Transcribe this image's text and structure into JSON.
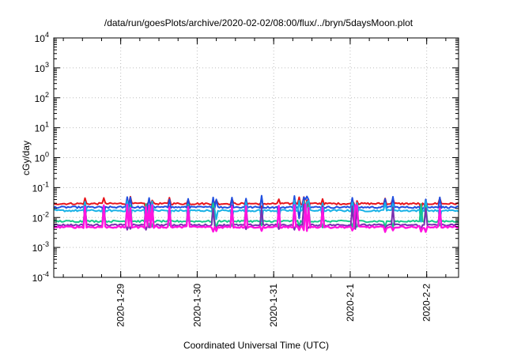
{
  "chart_data": {
    "type": "line",
    "title": "/data/run/goesPlots/archive/2020-02-02/08:00/flux/../bryn/5daysMoon.plot",
    "xlabel": "Coordinated Universal Time (UTC)",
    "ylabel": "cGy/day",
    "yscale": "log",
    "ylim": [
      0.0001,
      10000
    ],
    "xlim": [
      "2020-01-28 03:00",
      "2020-02-02 10:00"
    ],
    "grid": true,
    "legend": "none",
    "y_ticks": [
      {
        "base": "10",
        "exp": "-4"
      },
      {
        "base": "10",
        "exp": "-3"
      },
      {
        "base": "10",
        "exp": "-2"
      },
      {
        "base": "10",
        "exp": "-1"
      },
      {
        "base": "10",
        "exp": "0"
      },
      {
        "base": "10",
        "exp": "1"
      },
      {
        "base": "10",
        "exp": "2"
      },
      {
        "base": "10",
        "exp": "3"
      },
      {
        "base": "10",
        "exp": "4"
      }
    ],
    "x_ticks": [
      "2020-1-29",
      "2020-1-30",
      "2020-1-31",
      "2020-2-1",
      "2020-2-2"
    ],
    "x_tick_times": [
      "2020-01-29 00:00",
      "2020-01-30 00:00",
      "2020-01-31 00:00",
      "2020-02-01 00:00",
      "2020-02-02 00:00"
    ],
    "series": [
      {
        "color": "#e8141b",
        "baseline": 0.029,
        "spike_peak": 0.05,
        "dip_min": 0.018
      },
      {
        "color": "#1f4fe0",
        "baseline": 0.022,
        "spike_peak": 0.055,
        "dip_min": 0.009
      },
      {
        "color": "#19b2e6",
        "baseline": 0.017,
        "spike_peak": 0.04,
        "dip_min": 0.008
      },
      {
        "color": "#17c98a",
        "baseline": 0.0075,
        "spike_peak": 0.03,
        "dip_min": 0.005
      },
      {
        "color": "#7a2fb0",
        "baseline": 0.0056,
        "spike_peak": 0.028,
        "dip_min": 0.0042
      },
      {
        "color": "#ff14e0",
        "baseline": 0.0048,
        "spike_peak": 0.027,
        "dip_min": 0.0036
      }
    ]
  }
}
